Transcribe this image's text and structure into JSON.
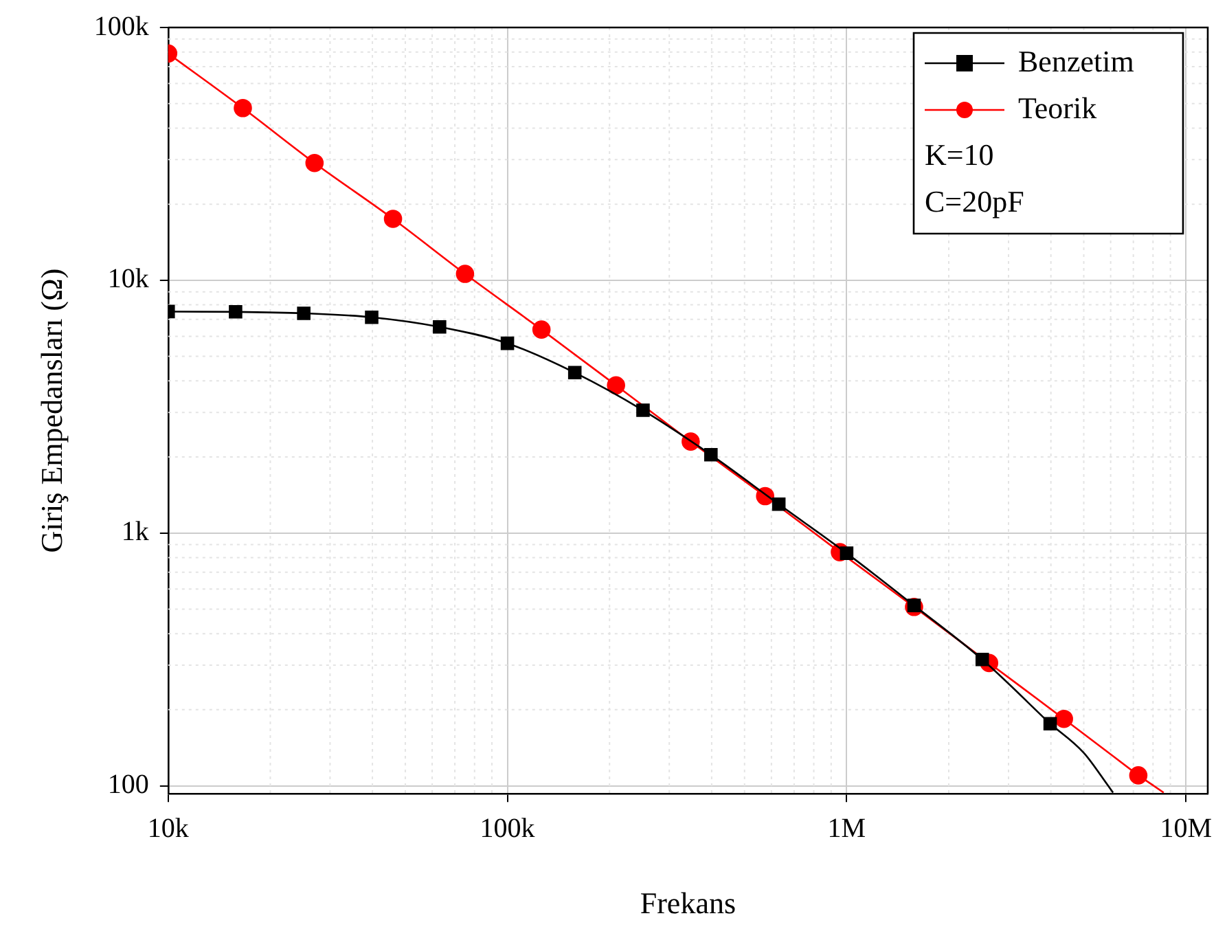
{
  "chart_data": {
    "type": "line",
    "xlabel": "Frekans",
    "ylabel": "Giriş Empedansları (Ω)",
    "log": "xy",
    "grid": true,
    "legend": "top right",
    "xlim": [
      10000,
      11600000
    ],
    "ylim": [
      93,
      100000
    ],
    "xticks": [
      {
        "value": 10000,
        "label": "10k"
      },
      {
        "value": 100000,
        "label": "100k"
      },
      {
        "value": 1000000,
        "label": "1M"
      },
      {
        "value": 10000000,
        "label": "10M"
      }
    ],
    "yticks": [
      {
        "value": 100,
        "label": "100"
      },
      {
        "value": 1000,
        "label": "1k"
      },
      {
        "value": 10000,
        "label": "10k"
      },
      {
        "value": 100000,
        "label": "100k"
      }
    ],
    "annotations": [
      "K=10",
      "C=20pF"
    ],
    "series": [
      {
        "name": "Benzetim",
        "color": "#000000",
        "marker": "square",
        "x": [
          10000,
          15800,
          25100,
          39800,
          63100,
          100000,
          158000,
          251000,
          398000,
          631000,
          1000000,
          1580000,
          2510000,
          3980000
        ],
        "values": [
          7520,
          7500,
          7400,
          7140,
          6540,
          5630,
          4310,
          3060,
          2040,
          1300,
          832,
          517,
          316,
          176
        ]
      },
      {
        "color": "#000000",
        "marker": "none",
        "x": [
          3980000,
          5000000,
          5900000,
          6100000
        ],
        "values": [
          176,
          135,
          100,
          94
        ]
      },
      {
        "name": "Teorik",
        "color": "#ff0000",
        "marker": "circle",
        "x": [
          10000,
          16600,
          27000,
          46000,
          75000,
          126000,
          209000,
          347000,
          575000,
          955000,
          1580000,
          2630000,
          4370000,
          7240000
        ],
        "values": [
          78900,
          48000,
          29100,
          17500,
          10600,
          6380,
          3840,
          2300,
          1400,
          840,
          510,
          306,
          184,
          110
        ]
      },
      {
        "color": "#ff0000",
        "marker": "none",
        "x": [
          7240000,
          8600000
        ],
        "values": [
          110,
          94
        ]
      }
    ]
  }
}
